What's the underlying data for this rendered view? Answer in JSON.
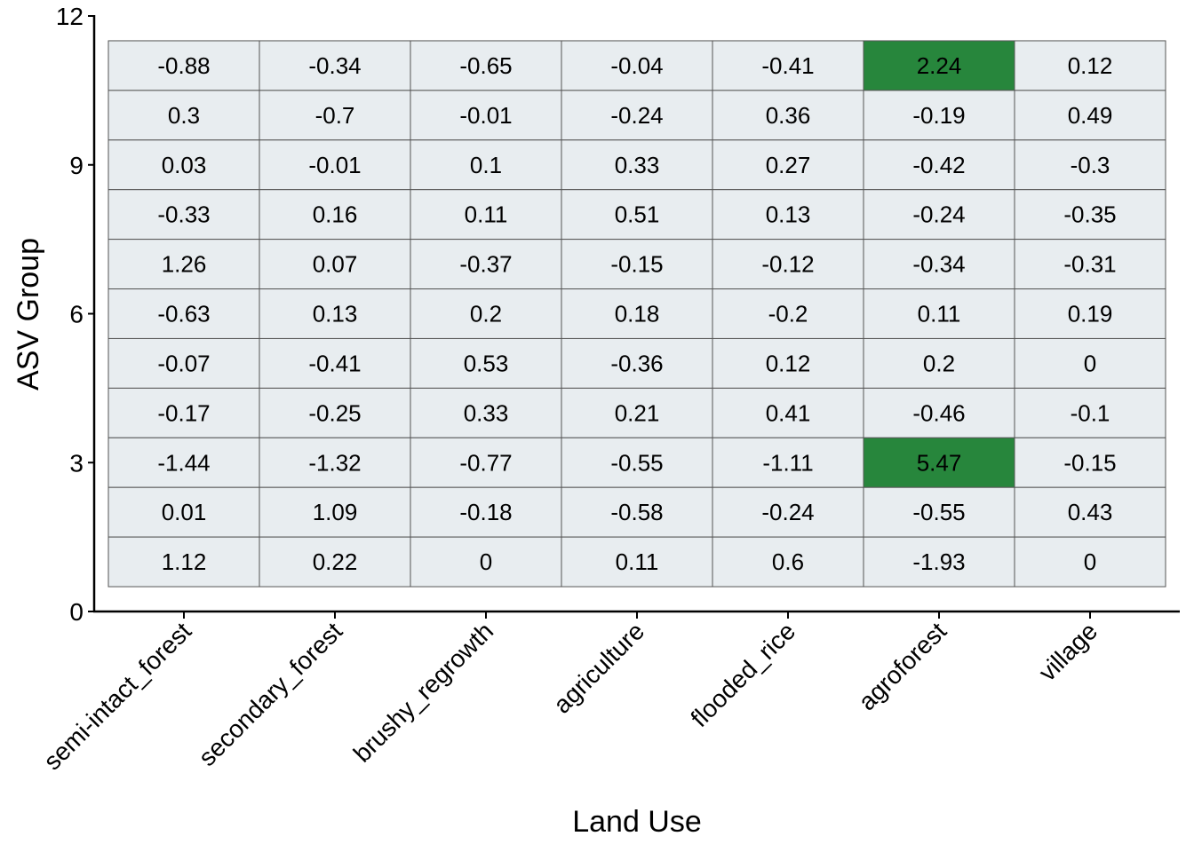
{
  "chart_data": {
    "type": "heatmap",
    "title": "",
    "xlabel": "Land Use",
    "ylabel": "ASV Group",
    "x_categories": [
      "semi-intact_forest",
      "secondary_forest",
      "brushy_regrowth",
      "agriculture",
      "flooded_rice",
      "agroforest",
      "village"
    ],
    "y_values": [
      11,
      10,
      9,
      8,
      7,
      6,
      5,
      4,
      3,
      2,
      1
    ],
    "y_ticks": [
      0,
      3,
      6,
      9,
      12
    ],
    "ylim": [
      0,
      12
    ],
    "values": [
      [
        "-0.88",
        "-0.34",
        "-0.65",
        "-0.04",
        "-0.41",
        "2.24",
        "0.12"
      ],
      [
        "0.3",
        "-0.7",
        "-0.01",
        "-0.24",
        "0.36",
        "-0.19",
        "0.49"
      ],
      [
        "0.03",
        "-0.01",
        "0.1",
        "0.33",
        "0.27",
        "-0.42",
        "-0.3"
      ],
      [
        "-0.33",
        "0.16",
        "0.11",
        "0.51",
        "0.13",
        "-0.24",
        "-0.35"
      ],
      [
        "1.26",
        "0.07",
        "-0.37",
        "-0.15",
        "-0.12",
        "-0.34",
        "-0.31"
      ],
      [
        "-0.63",
        "0.13",
        "0.2",
        "0.18",
        "-0.2",
        "0.11",
        "0.19"
      ],
      [
        "-0.07",
        "-0.41",
        "0.53",
        "-0.36",
        "0.12",
        "0.2",
        "0"
      ],
      [
        "-0.17",
        "-0.25",
        "0.33",
        "0.21",
        "0.41",
        "-0.46",
        "-0.1"
      ],
      [
        "-1.44",
        "-1.32",
        "-0.77",
        "-0.55",
        "-1.11",
        "5.47",
        "-0.15"
      ],
      [
        "0.01",
        "1.09",
        "-0.18",
        "-0.58",
        "-0.24",
        "-0.55",
        "0.43"
      ],
      [
        "1.12",
        "0.22",
        "0",
        "0.11",
        "0.6",
        "-1.93",
        "0"
      ]
    ],
    "highlight_threshold": 2,
    "colors": {
      "default_fill": "#e8edf0",
      "highlight_fill": "#27863c",
      "cell_border": "#555555",
      "axis": "#000000"
    },
    "grid": false,
    "legend": "none"
  }
}
